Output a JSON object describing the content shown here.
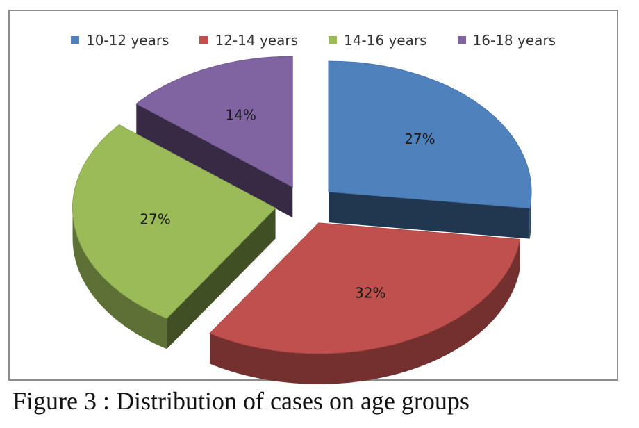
{
  "chart_data": {
    "type": "pie",
    "categories": [
      "10-12 years",
      "12-14 years",
      "14-16 years",
      "16-18 years"
    ],
    "values": [
      27,
      32,
      27,
      14
    ],
    "labels": [
      "27%",
      "32%",
      "27%",
      "14%"
    ],
    "colors": [
      "#4f81bd",
      "#c0504d",
      "#9bbb59",
      "#8064a2"
    ],
    "legend_position": "top",
    "style": "3d-exploded"
  },
  "caption": "Figure 3 : Distribution of cases on age groups"
}
